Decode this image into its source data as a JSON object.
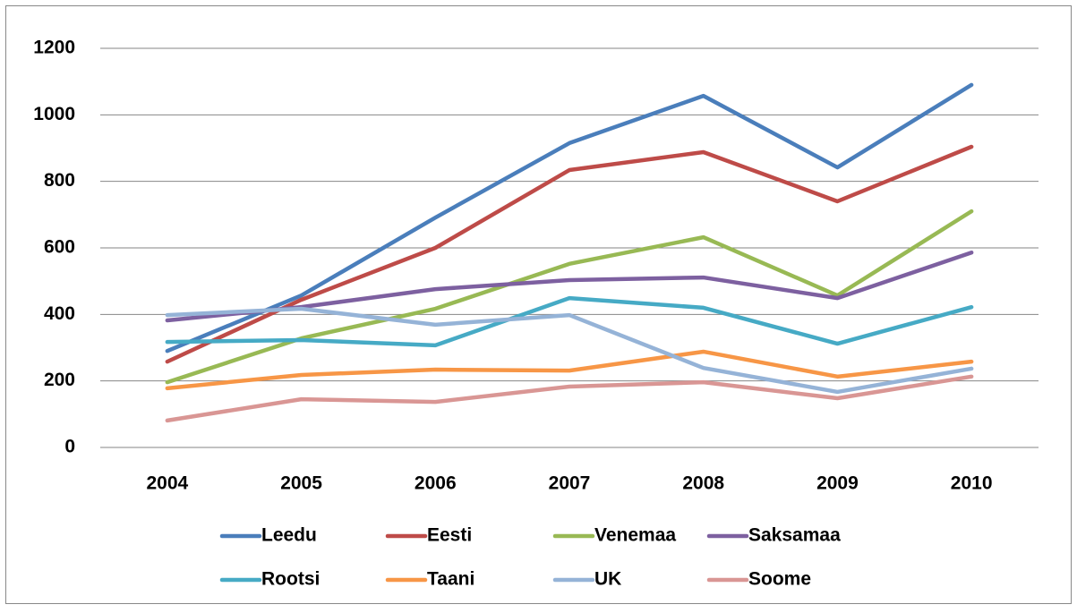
{
  "chart_data": {
    "type": "line",
    "categories": [
      "2004",
      "2005",
      "2006",
      "2007",
      "2008",
      "2009",
      "2010"
    ],
    "series": [
      {
        "name": "Leedu",
        "color": "#4a7ebb",
        "values": [
          290,
          457,
          691,
          915,
          1057,
          842,
          1090
        ]
      },
      {
        "name": "Eesti",
        "color": "#be4b48",
        "values": [
          258,
          444,
          600,
          834,
          888,
          740,
          904
        ]
      },
      {
        "name": "Venemaa",
        "color": "#98b954",
        "values": [
          196,
          328,
          417,
          552,
          632,
          457,
          710
        ]
      },
      {
        "name": "Saksamaa",
        "color": "#7d60a0",
        "values": [
          382,
          422,
          476,
          503,
          511,
          449,
          586
        ]
      },
      {
        "name": "Rootsi",
        "color": "#46aac5",
        "values": [
          317,
          323,
          307,
          449,
          420,
          312,
          422
        ]
      },
      {
        "name": "Taani",
        "color": "#f79646",
        "values": [
          178,
          218,
          234,
          231,
          288,
          213,
          258
        ]
      },
      {
        "name": "UK",
        "color": "#95b3d7",
        "values": [
          398,
          417,
          369,
          398,
          239,
          167,
          237
        ]
      },
      {
        "name": "Soome",
        "color": "#d99694",
        "values": [
          81,
          145,
          137,
          183,
          196,
          148,
          213
        ]
      }
    ],
    "ylim": [
      0,
      1200
    ],
    "yticks": [
      0,
      200,
      400,
      600,
      800,
      1000,
      1200
    ],
    "grid": true,
    "legend": "bottom"
  }
}
